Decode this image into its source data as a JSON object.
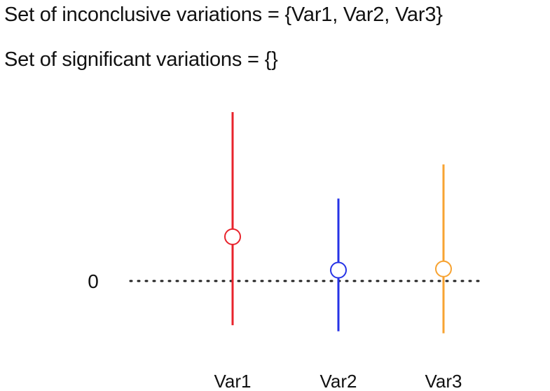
{
  "captions": {
    "inconclusive": "Set of inconclusive variations = {Var1, Var2, Var3}",
    "significant": "Set of significant variations = {}"
  },
  "chart_data": {
    "type": "scatter",
    "title": "",
    "xlabel": "",
    "ylabel": "",
    "categories": [
      "Var1",
      "Var2",
      "Var3"
    ],
    "ylim": [
      -1.1,
      4.2
    ],
    "yticks": [
      0
    ],
    "baseline": {
      "value": 0,
      "label": "0",
      "style": "dotted"
    },
    "grid": false,
    "series": [
      {
        "category": "Var1",
        "estimate": 1.1,
        "lower": -1.1,
        "upper": 4.2,
        "color": "#e8232c"
      },
      {
        "category": "Var2",
        "estimate": 0.27,
        "lower": -1.25,
        "upper": 2.05,
        "color": "#2633e6"
      },
      {
        "category": "Var3",
        "estimate": 0.3,
        "lower": -1.3,
        "upper": 2.9,
        "color": "#f7a332"
      }
    ]
  }
}
